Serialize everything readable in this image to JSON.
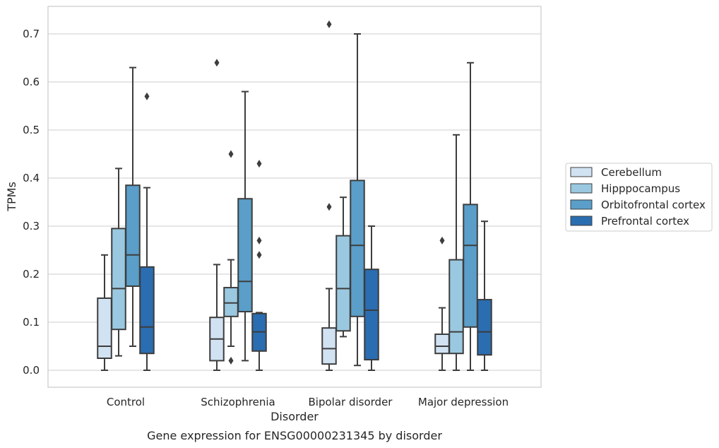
{
  "chart_data": {
    "type": "box",
    "title": "",
    "caption": "Gene expression for ENSG00000231345 by disorder",
    "xlabel": "Disorder",
    "ylabel": "TPMs",
    "ylim": [
      -0.035,
      0.76
    ],
    "yticks": [
      "0.0",
      "0.1",
      "0.2",
      "0.3",
      "0.4",
      "0.5",
      "0.6",
      "0.7"
    ],
    "grid": "horizontal",
    "legend_position": "right",
    "categories": [
      "Control",
      "Schizophrenia",
      "Bipolar disorder",
      "Major depression"
    ],
    "series": [
      {
        "name": "Cerebellum",
        "color": "#d1e2f2",
        "boxes": [
          {
            "whislo": 0.0,
            "q1": 0.025,
            "med": 0.05,
            "q3": 0.15,
            "whishi": 0.24,
            "fliers": []
          },
          {
            "whislo": 0.0,
            "q1": 0.02,
            "med": 0.065,
            "q3": 0.11,
            "whishi": 0.22,
            "fliers": [
              0.64
            ]
          },
          {
            "whislo": 0.0,
            "q1": 0.013,
            "med": 0.045,
            "q3": 0.088,
            "whishi": 0.17,
            "fliers": [
              0.34,
              0.72
            ]
          },
          {
            "whislo": 0.0,
            "q1": 0.035,
            "med": 0.05,
            "q3": 0.075,
            "whishi": 0.13,
            "fliers": [
              0.27
            ]
          }
        ]
      },
      {
        "name": "Hipppocampus",
        "color": "#9ac8e0",
        "boxes": [
          {
            "whislo": 0.03,
            "q1": 0.085,
            "med": 0.17,
            "q3": 0.295,
            "whishi": 0.42,
            "fliers": []
          },
          {
            "whislo": 0.05,
            "q1": 0.112,
            "med": 0.14,
            "q3": 0.172,
            "whishi": 0.23,
            "fliers": [
              0.02,
              0.45
            ]
          },
          {
            "whislo": 0.07,
            "q1": 0.082,
            "med": 0.17,
            "q3": 0.28,
            "whishi": 0.36,
            "fliers": []
          },
          {
            "whislo": 0.0,
            "q1": 0.035,
            "med": 0.08,
            "q3": 0.23,
            "whishi": 0.49,
            "fliers": []
          }
        ]
      },
      {
        "name": "Orbitofrontal cortex",
        "color": "#5a9ec9",
        "boxes": [
          {
            "whislo": 0.05,
            "q1": 0.175,
            "med": 0.24,
            "q3": 0.385,
            "whishi": 0.63,
            "fliers": []
          },
          {
            "whislo": 0.02,
            "q1": 0.122,
            "med": 0.185,
            "q3": 0.357,
            "whishi": 0.58,
            "fliers": []
          },
          {
            "whislo": 0.01,
            "q1": 0.112,
            "med": 0.26,
            "q3": 0.395,
            "whishi": 0.7,
            "fliers": []
          },
          {
            "whislo": 0.0,
            "q1": 0.09,
            "med": 0.26,
            "q3": 0.345,
            "whishi": 0.64,
            "fliers": []
          }
        ]
      },
      {
        "name": "Prefrontal cortex",
        "color": "#2a6db1",
        "boxes": [
          {
            "whislo": 0.0,
            "q1": 0.035,
            "med": 0.09,
            "q3": 0.215,
            "whishi": 0.38,
            "fliers": [
              0.57
            ]
          },
          {
            "whislo": 0.0,
            "q1": 0.04,
            "med": 0.08,
            "q3": 0.118,
            "whishi": 0.12,
            "fliers": [
              0.24,
              0.27,
              0.43
            ]
          },
          {
            "whislo": 0.0,
            "q1": 0.022,
            "med": 0.125,
            "q3": 0.21,
            "whishi": 0.3,
            "fliers": []
          },
          {
            "whislo": 0.0,
            "q1": 0.032,
            "med": 0.08,
            "q3": 0.147,
            "whishi": 0.31,
            "fliers": []
          }
        ]
      }
    ]
  }
}
